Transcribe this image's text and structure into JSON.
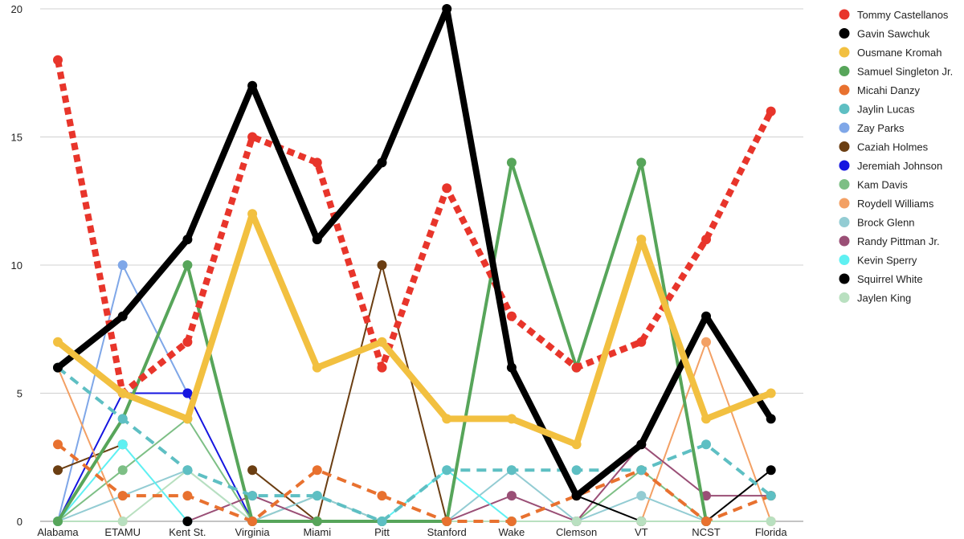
{
  "chart_data": {
    "type": "line",
    "title": "",
    "xlabel": "",
    "ylabel": "",
    "ylim": [
      0,
      20
    ],
    "yticks": [
      0,
      5,
      10,
      15,
      20
    ],
    "grid": true,
    "legend_position": "right",
    "categories": [
      "Alabama",
      "ETAMU",
      "Kent St.",
      "Virginia",
      "Miami",
      "Pitt",
      "Stanford",
      "Wake",
      "Clemson",
      "VT",
      "NCST",
      "Florida"
    ],
    "series": [
      {
        "name": "Tommy Castellanos",
        "color": "#e8352b",
        "style": "dotted-thick",
        "values": [
          18,
          5,
          7,
          15,
          14,
          6,
          13,
          8,
          6,
          7,
          11,
          16
        ]
      },
      {
        "name": "Gavin Sawchuk",
        "color": "#000000",
        "style": "solid-thick",
        "values": [
          6,
          8,
          11,
          17,
          11,
          14,
          20,
          6,
          1,
          3,
          8,
          4
        ]
      },
      {
        "name": "Ousmane Kromah",
        "color": "#f2c040",
        "style": "solid-thick",
        "values": [
          7,
          5,
          4,
          12,
          6,
          7,
          4,
          4,
          3,
          11,
          4,
          5
        ]
      },
      {
        "name": "Samuel Singleton Jr.",
        "color": "#57a55a",
        "style": "solid",
        "values": [
          0,
          4,
          10,
          0,
          0,
          0,
          0,
          14,
          6,
          14,
          0,
          null
        ]
      },
      {
        "name": "Micahi Danzy",
        "color": "#e8712f",
        "style": "dashed",
        "values": [
          3,
          1,
          1,
          0,
          2,
          1,
          0,
          0,
          1,
          2,
          0,
          1
        ]
      },
      {
        "name": "Jaylin Lucas",
        "color": "#5ebfc3",
        "style": "dashed",
        "values": [
          6,
          4,
          2,
          1,
          1,
          0,
          2,
          2,
          2,
          2,
          3,
          1
        ]
      },
      {
        "name": "Zay Parks",
        "color": "#7fa7e8",
        "style": "solid-thin",
        "values": [
          0,
          10,
          5,
          null,
          null,
          null,
          null,
          null,
          null,
          null,
          null,
          null
        ]
      },
      {
        "name": "Caziah Holmes",
        "color": "#6b3e12",
        "style": "solid-thin",
        "values": [
          2,
          3,
          null,
          2,
          0,
          10,
          0,
          null,
          null,
          null,
          null,
          null
        ]
      },
      {
        "name": "Jeremiah Johnson",
        "color": "#1515e0",
        "style": "solid-thin",
        "values": [
          0,
          5,
          5,
          0,
          null,
          null,
          null,
          null,
          null,
          null,
          null,
          null
        ]
      },
      {
        "name": "Kam Davis",
        "color": "#7dbf85",
        "style": "solid-thin",
        "values": [
          0,
          2,
          4,
          0,
          1,
          0,
          0,
          0,
          0,
          2,
          0,
          null
        ]
      },
      {
        "name": "Roydell Williams",
        "color": "#f3a064",
        "style": "solid-thin",
        "values": [
          6,
          0,
          null,
          null,
          null,
          null,
          null,
          null,
          null,
          0,
          7,
          0
        ]
      },
      {
        "name": "Brock Glenn",
        "color": "#93ccd3",
        "style": "solid-thin",
        "values": [
          0,
          1,
          2,
          0,
          1,
          0,
          0,
          2,
          0,
          1,
          0,
          null
        ]
      },
      {
        "name": "Randy Pittman Jr.",
        "color": "#9a4f76",
        "style": "solid-thin",
        "values": [
          null,
          null,
          0,
          1,
          0,
          null,
          0,
          1,
          0,
          3,
          1,
          1
        ]
      },
      {
        "name": "Kevin Sperry",
        "color": "#5ff0f2",
        "style": "solid-thin",
        "values": [
          0,
          3,
          0,
          null,
          null,
          0,
          2,
          0,
          null,
          null,
          null,
          null
        ]
      },
      {
        "name": "Squirrel White",
        "color": "#000000",
        "style": "solid-thin",
        "values": [
          null,
          null,
          0,
          null,
          null,
          null,
          null,
          null,
          1,
          0,
          0,
          2
        ]
      },
      {
        "name": "Jaylen King",
        "color": "#b9e0c0",
        "style": "solid-thin",
        "values": [
          0,
          0,
          2,
          0,
          0,
          0,
          0,
          0,
          0,
          0,
          0,
          0
        ]
      }
    ]
  }
}
